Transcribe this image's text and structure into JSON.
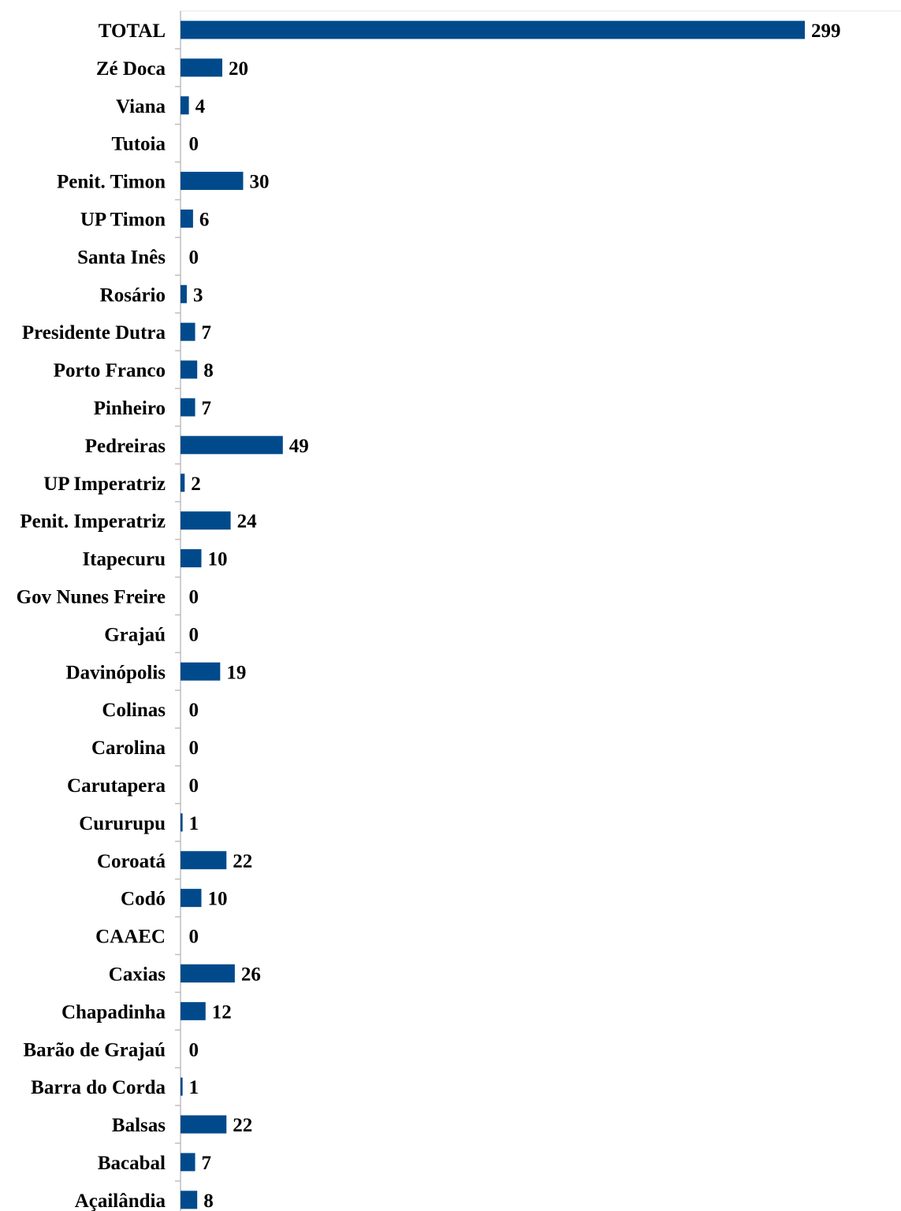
{
  "chart_data": {
    "type": "bar",
    "orientation": "horizontal",
    "title": "",
    "xlabel": "",
    "ylabel": "",
    "categories": [
      "TOTAL",
      "Zé Doca",
      "Viana",
      "Tutoia",
      "Penit. Timon",
      "UP Timon",
      "Santa Inês",
      "Rosário",
      "Presidente Dutra",
      "Porto Franco",
      "Pinheiro",
      "Pedreiras",
      "UP Imperatriz",
      "Penit. Imperatriz",
      "Itapecuru",
      "Gov Nunes Freire",
      "Grajaú",
      "Davinópolis",
      "Colinas",
      "Carolina",
      "Carutapera",
      "Cururupu",
      "Coroatá",
      "Codó",
      "CAAEC",
      "Caxias",
      "Chapadinha",
      "Barão de Grajaú",
      "Barra do Corda",
      "Balsas",
      "Bacabal",
      "Açailândia"
    ],
    "values": [
      299,
      20,
      4,
      0,
      30,
      6,
      0,
      3,
      7,
      8,
      7,
      49,
      2,
      24,
      10,
      0,
      0,
      19,
      0,
      0,
      0,
      1,
      22,
      10,
      0,
      26,
      12,
      0,
      1,
      22,
      7,
      8
    ],
    "value_labels": [
      "299",
      "20",
      "4",
      "0",
      "30",
      "6",
      "0",
      "3",
      "7",
      "8",
      "7",
      "49",
      "2",
      "24",
      "10",
      "0",
      "0",
      "19",
      "0",
      "0",
      "0",
      "1",
      "22",
      "10",
      "0",
      "26",
      "12",
      "0",
      "1",
      "22",
      "7",
      "8"
    ],
    "xlim": [
      0,
      299
    ],
    "grid": false,
    "legend": "none",
    "bar_color": "#004a8c",
    "axis_color": "#bfbfbf"
  }
}
